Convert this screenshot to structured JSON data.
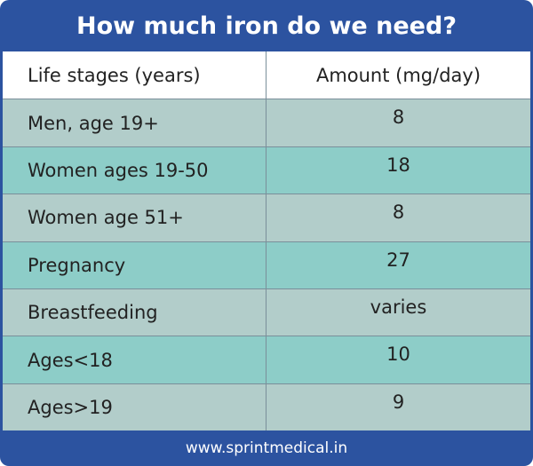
{
  "header": {
    "title": "How much iron do we need?"
  },
  "table": {
    "columns": [
      "Life stages (years)",
      "Amount (mg/day)"
    ],
    "rows": [
      [
        "Men, age 19+",
        8
      ],
      [
        "Women ages 19-50",
        18
      ],
      [
        "Women age 51+",
        8
      ],
      [
        "Pregnancy",
        27
      ],
      [
        "Breastfeeding",
        "varies"
      ],
      [
        "Ages<18",
        10
      ],
      [
        "Ages>19",
        9
      ]
    ]
  },
  "footer": {
    "url": "www.sprintmedical.in"
  }
}
